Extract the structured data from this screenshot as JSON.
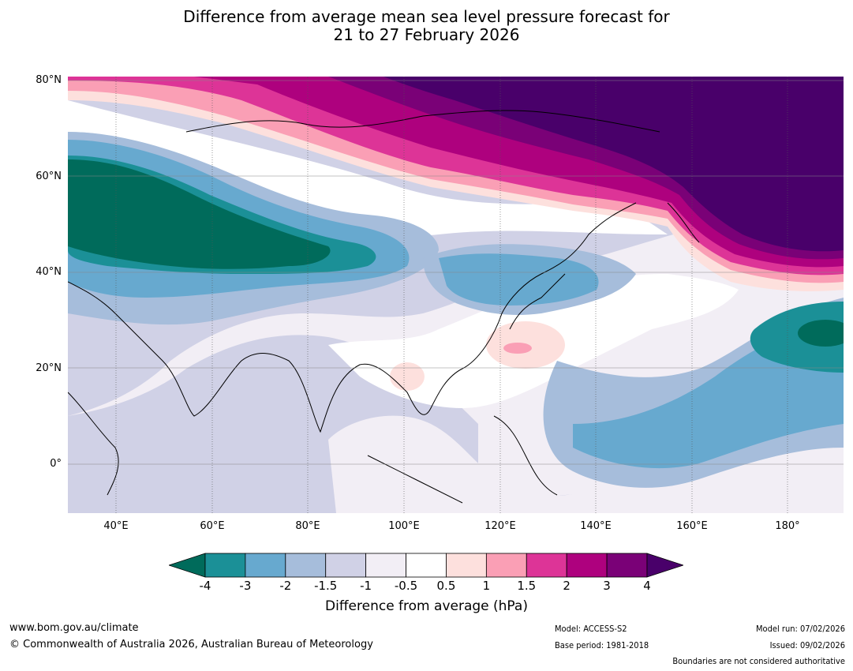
{
  "title_line1": "Difference from average mean sea level pressure forecast for",
  "title_line2": "21 to 27 February 2026",
  "lat_labels": [
    "80°N",
    "60°N",
    "40°N",
    "20°N",
    "0°"
  ],
  "lon_labels": [
    "40°E",
    "60°E",
    "80°E",
    "100°E",
    "120°E",
    "140°E",
    "160°E",
    "180°"
  ],
  "colorbar": {
    "ticks": [
      "-4",
      "-3",
      "-2",
      "-1.5",
      "-1",
      "-0.5",
      "0.5",
      "1",
      "1.5",
      "2",
      "3",
      "4"
    ],
    "label": "Difference from average (hPa)",
    "colors": [
      "#006b5b",
      "#1b9097",
      "#67a9cf",
      "#a6bddb",
      "#d0d1e6",
      "#f2eef5",
      "#ffffff",
      "#fde0dd",
      "#fa9fb5",
      "#dd3497",
      "#ae017e",
      "#7a0177",
      "#49006a"
    ]
  },
  "footer": {
    "website": "www.bom.gov.au/climate",
    "copyright": "© Commonwealth of Australia 2026, Australian Bureau of Meteorology",
    "model": "Model: ACCESS-S2",
    "base_period": "Base period: 1981-2018",
    "model_run": "Model run: 07/02/2026",
    "issued": "Issued: 09/02/2026",
    "disclaimer": "Boundaries are not considered authoritative"
  }
}
